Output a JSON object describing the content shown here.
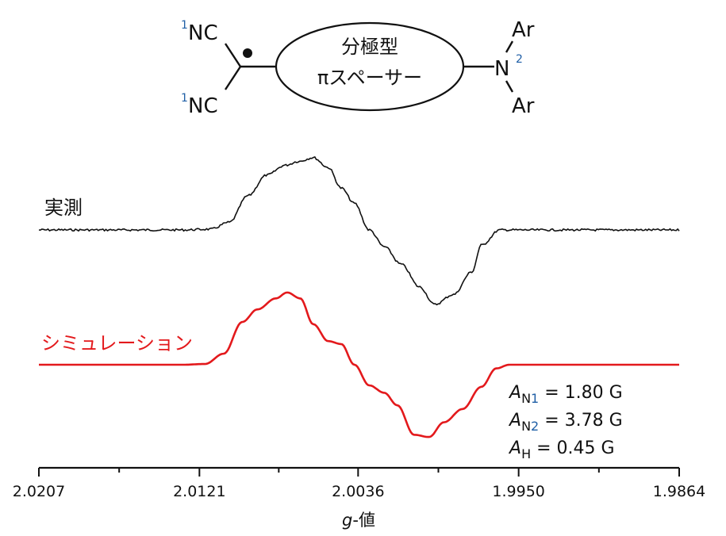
{
  "molecule": {
    "left_group": "NC",
    "superscript_1": "1",
    "superscript_2": "2",
    "spacer_line1": "分極型",
    "spacer_line2": "πスペーサー",
    "amine_atom": "N",
    "aryl": "Ar"
  },
  "chart_data": {
    "type": "line",
    "xlabel_italic": "g",
    "xlabel_rest": "-値",
    "x_axis_reversed": true,
    "xlim": [
      2.0207,
      1.9864
    ],
    "tick_labels": [
      "2.0207",
      "2.0121",
      "2.0036",
      "1.9950",
      "1.9864"
    ],
    "tick_values": [
      2.0207,
      2.0121,
      2.0036,
      1.995,
      1.9864
    ],
    "series": [
      {
        "name": "実測",
        "color": "#111111",
        "x": [
          2.0207,
          2.0165,
          2.013,
          2.0115,
          2.0105,
          2.0095,
          2.0085,
          2.0075,
          2.0068,
          2.006,
          2.0052,
          2.0045,
          2.0038,
          2.003,
          2.0022,
          2.0013,
          2.0003,
          1.9995,
          1.9985,
          1.9975,
          1.997,
          1.996,
          1.993,
          1.99,
          1.9864
        ],
        "y": [
          0.0,
          0.0,
          0.0,
          0.01,
          0.1,
          0.45,
          0.72,
          0.85,
          0.9,
          0.95,
          0.82,
          0.55,
          0.35,
          0.0,
          -0.22,
          -0.45,
          -0.75,
          -0.98,
          -0.85,
          -0.55,
          -0.2,
          0.0,
          0.0,
          0.0,
          0.0
        ]
      },
      {
        "name": "シミュレーション",
        "color": "#e3191c",
        "x": [
          2.0207,
          2.0165,
          2.013,
          2.0118,
          2.0108,
          2.0098,
          2.009,
          2.008,
          2.0074,
          2.0067,
          2.006,
          2.0052,
          2.0045,
          2.0038,
          2.003,
          2.0022,
          2.0015,
          2.0006,
          1.9998,
          1.999,
          1.998,
          1.997,
          1.9962,
          1.9955,
          1.993,
          1.99,
          1.9864
        ],
        "y": [
          0.0,
          0.0,
          0.0,
          0.01,
          0.15,
          0.58,
          0.75,
          0.9,
          0.98,
          0.9,
          0.55,
          0.32,
          0.28,
          0.0,
          -0.28,
          -0.38,
          -0.55,
          -0.95,
          -0.98,
          -0.78,
          -0.6,
          -0.3,
          -0.05,
          0.0,
          0.0,
          0.0,
          0.0
        ]
      }
    ],
    "parameters": [
      {
        "symbol": "A",
        "subscript": "N",
        "subscript_num": "1",
        "value_text": " = 1.80 G"
      },
      {
        "symbol": "A",
        "subscript": "N",
        "subscript_num": "2",
        "value_text": " = 3.78 G"
      },
      {
        "symbol": "A",
        "subscript": "H",
        "subscript_num": "",
        "value_text": " = 0.45 G"
      }
    ]
  }
}
